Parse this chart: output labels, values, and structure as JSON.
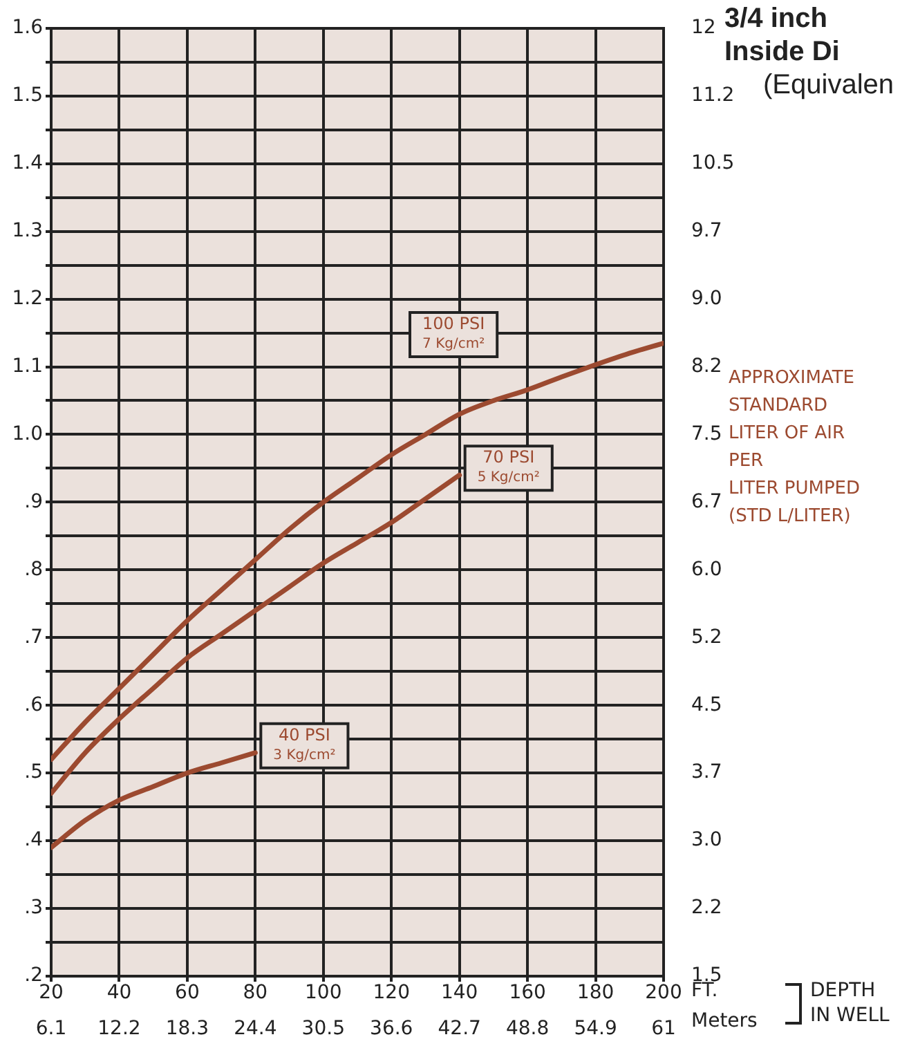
{
  "chart_data": {
    "type": "line",
    "title": "3/4 inch\nInside Di",
    "subtitle": "(Equivalen",
    "xlabel": "FT.",
    "x2label": "Meters",
    "y2label": "APPROXIMATE\nSTANDARD\nLITER OF AIR\nPER\nLITER PUMPED\n(STD L/LITER)",
    "annotations": [
      "DEPTH\nIN WELL"
    ],
    "xlim": [
      20,
      200
    ],
    "xticks": [
      20,
      40,
      60,
      80,
      100,
      120,
      140,
      160,
      180,
      200
    ],
    "x2lim": [
      6.1,
      61
    ],
    "x2ticks": [
      6.1,
      12.2,
      18.3,
      24.4,
      30.5,
      36.6,
      42.7,
      48.8,
      54.9,
      61
    ],
    "ylim": [
      0.2,
      1.6
    ],
    "yticks": [
      {
        "value": 0.2,
        "label": ".2"
      },
      {
        "value": 0.25,
        "label": null
      },
      {
        "value": 0.3,
        "label": ".3"
      },
      {
        "value": 0.35,
        "label": null
      },
      {
        "value": 0.4,
        "label": ".4"
      },
      {
        "value": 0.45,
        "label": null
      },
      {
        "value": 0.5,
        "label": ".5"
      },
      {
        "value": 0.55,
        "label": null
      },
      {
        "value": 0.6,
        "label": ".6"
      },
      {
        "value": 0.65,
        "label": null
      },
      {
        "value": 0.7,
        "label": ".7"
      },
      {
        "value": 0.75,
        "label": null
      },
      {
        "value": 0.8,
        "label": ".8"
      },
      {
        "value": 0.85,
        "label": null
      },
      {
        "value": 0.9,
        "label": ".9"
      },
      {
        "value": 0.95,
        "label": null
      },
      {
        "value": 1.0,
        "label": "1.0"
      },
      {
        "value": 1.05,
        "label": null
      },
      {
        "value": 1.1,
        "label": "1.1"
      },
      {
        "value": 1.15,
        "label": null
      },
      {
        "value": 1.2,
        "label": "1.2"
      },
      {
        "value": 1.25,
        "label": null
      },
      {
        "value": 1.3,
        "label": "1.3"
      },
      {
        "value": 1.35,
        "label": null
      },
      {
        "value": 1.4,
        "label": "1.4"
      },
      {
        "value": 1.45,
        "label": null
      },
      {
        "value": 1.5,
        "label": "1.5"
      },
      {
        "value": 1.55,
        "label": null
      },
      {
        "value": 1.6,
        "label": "1.6"
      }
    ],
    "y2lim": [
      1.5,
      12
    ],
    "y2ticks": [
      1.5,
      {
        "value": 2.25,
        "label": "2.2"
      },
      {
        "value": 3,
        "label": "3.0"
      },
      {
        "value": 3.75,
        "label": "3.7"
      },
      4.5,
      {
        "value": 5.25,
        "label": "5.2"
      },
      {
        "value": 6,
        "label": "6.0"
      },
      {
        "value": 6.75,
        "label": "6.7"
      },
      7.5,
      {
        "value": 8.25,
        "label": "8.2"
      },
      {
        "value": 9,
        "label": "9.0"
      },
      {
        "value": 9.75,
        "label": "9.7"
      },
      10.5,
      {
        "value": 11.25,
        "label": "11.2"
      },
      12
    ],
    "grid": true,
    "marker": "none",
    "line_style": "solid",
    "series": [
      {
        "name": "100 PSI\n7 Kg/cm²",
        "color": "#9c4a30",
        "x": [
          20,
          30,
          40,
          50,
          60,
          70,
          80,
          90,
          100,
          110,
          120,
          130,
          140,
          150,
          160,
          170,
          180,
          190,
          200
        ],
        "values": [
          0.52,
          0.575,
          0.625,
          0.675,
          0.725,
          0.77,
          0.815,
          0.86,
          0.9,
          0.935,
          0.97,
          1.0,
          1.03,
          1.05,
          1.066,
          1.085,
          1.103,
          1.12,
          1.135
        ]
      },
      {
        "name": "70 PSI\n5 Kg/cm²",
        "color": "#9c4a30",
        "x": [
          20,
          30,
          40,
          50,
          60,
          70,
          80,
          90,
          100,
          110,
          120,
          130,
          140
        ],
        "values": [
          0.47,
          0.53,
          0.58,
          0.625,
          0.67,
          0.705,
          0.74,
          0.775,
          0.81,
          0.84,
          0.87,
          0.905,
          0.94
        ]
      },
      {
        "name": "40 PSI\n3 Kg/cm²",
        "color": "#9c4a30",
        "x": [
          20,
          30,
          40,
          50,
          60,
          70,
          80
        ],
        "values": [
          0.39,
          0.43,
          0.46,
          0.48,
          0.5,
          0.515,
          0.53
        ]
      }
    ]
  }
}
